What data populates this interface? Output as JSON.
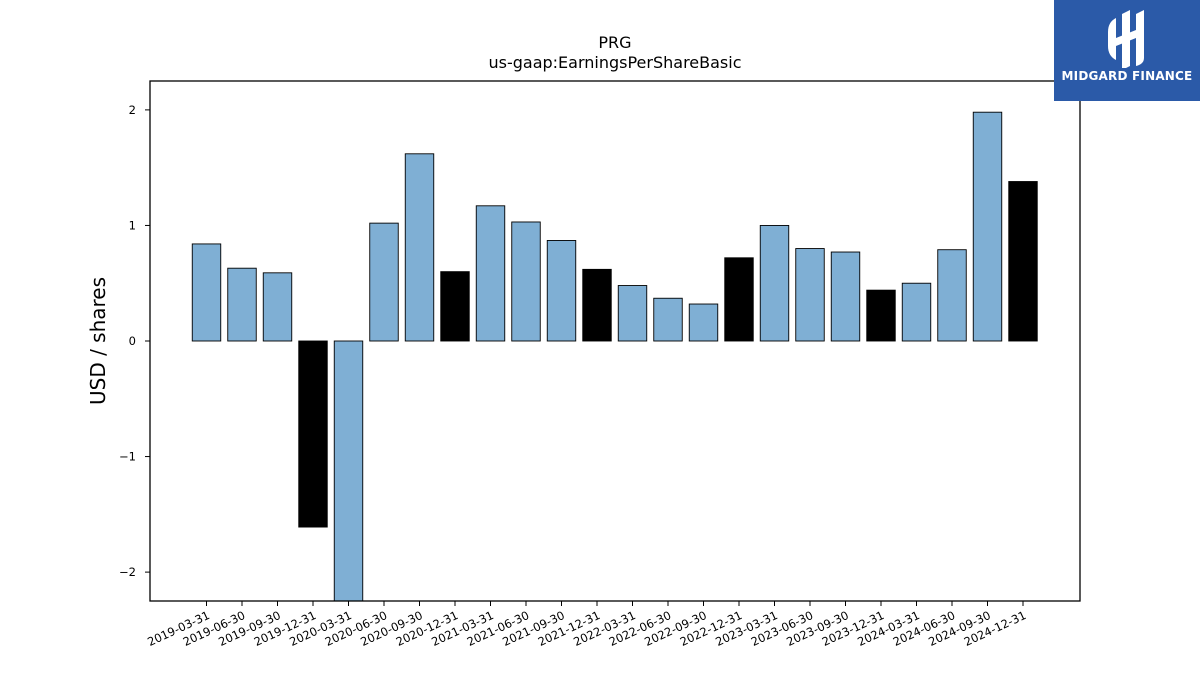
{
  "chart_data": {
    "type": "bar",
    "title": "PRG",
    "subtitle": "us-gaap:EarningsPerShareBasic",
    "xlabel": "",
    "ylabel": "USD / shares",
    "ylim": [
      -2.25,
      2.25
    ],
    "yticks": [
      -2,
      -1,
      0,
      1,
      2
    ],
    "categories": [
      "2019-03-31",
      "2019-06-30",
      "2019-09-30",
      "2019-12-31",
      "2020-03-31",
      "2020-06-30",
      "2020-09-30",
      "2020-12-31",
      "2021-03-31",
      "2021-06-30",
      "2021-09-30",
      "2021-12-31",
      "2022-03-31",
      "2022-06-30",
      "2022-09-30",
      "2022-12-31",
      "2023-03-31",
      "2023-06-30",
      "2023-09-30",
      "2023-12-31",
      "2024-03-31",
      "2024-06-30",
      "2024-09-30",
      "2024-12-31"
    ],
    "values": [
      0.84,
      0.63,
      0.59,
      -1.61,
      -2.27,
      1.02,
      1.62,
      0.6,
      1.17,
      1.03,
      0.87,
      0.62,
      0.48,
      0.37,
      0.32,
      0.72,
      1.0,
      0.8,
      0.77,
      0.44,
      0.5,
      0.79,
      1.98,
      1.38
    ],
    "bar_colors": [
      "#7fafd4",
      "#7fafd4",
      "#7fafd4",
      "#000000",
      "#7fafd4",
      "#7fafd4",
      "#7fafd4",
      "#000000",
      "#7fafd4",
      "#7fafd4",
      "#7fafd4",
      "#000000",
      "#7fafd4",
      "#7fafd4",
      "#7fafd4",
      "#000000",
      "#7fafd4",
      "#7fafd4",
      "#7fafd4",
      "#000000",
      "#7fafd4",
      "#7fafd4",
      "#7fafd4",
      "#000000"
    ],
    "grid": false,
    "legend": "none"
  },
  "logo": {
    "text": "MIDGARD FINANCE",
    "background": "#2b5aa8"
  }
}
